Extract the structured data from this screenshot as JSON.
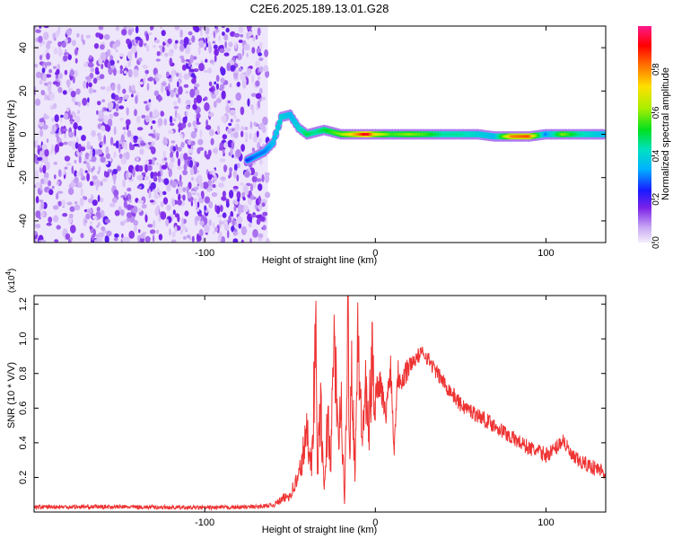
{
  "title": "C2E6.2025.189.13.01.G28",
  "chart_data": [
    {
      "type": "heatmap",
      "title": "C2E6.2025.189.13.01.G28",
      "xlabel": "Height of straight line (km)",
      "ylabel": "Frequency (Hz)",
      "xlim": [
        -200,
        135
      ],
      "ylim": [
        -50,
        50
      ],
      "xticks": [
        -100,
        0,
        100
      ],
      "yticks": [
        -40,
        -20,
        0,
        20,
        40
      ],
      "grid": false,
      "noise_region_x": [
        -200,
        -63
      ],
      "noise_region_note": "",
      "signal_track": [
        {
          "x": -75,
          "freq": -12,
          "amp": 0.25
        },
        {
          "x": -70,
          "freq": -10,
          "amp": 0.3
        },
        {
          "x": -65,
          "freq": -8,
          "amp": 0.3
        },
        {
          "x": -60,
          "freq": -4,
          "amp": 0.35
        },
        {
          "x": -55,
          "freq": 8,
          "amp": 0.4
        },
        {
          "x": -50,
          "freq": 9,
          "amp": 0.35
        },
        {
          "x": -45,
          "freq": 3,
          "amp": 0.4
        },
        {
          "x": -40,
          "freq": 0,
          "amp": 0.5
        },
        {
          "x": -35,
          "freq": 1,
          "amp": 0.45
        },
        {
          "x": -30,
          "freq": 2,
          "amp": 0.5
        },
        {
          "x": -25,
          "freq": 1,
          "amp": 0.55
        },
        {
          "x": -20,
          "freq": 0,
          "amp": 0.6
        },
        {
          "x": -15,
          "freq": 0,
          "amp": 0.7
        },
        {
          "x": -10,
          "freq": 0,
          "amp": 0.8
        },
        {
          "x": -5,
          "freq": 0,
          "amp": 0.95
        },
        {
          "x": 0,
          "freq": 0,
          "amp": 0.7
        },
        {
          "x": 10,
          "freq": 0,
          "amp": 0.55
        },
        {
          "x": 20,
          "freq": 0,
          "amp": 0.6
        },
        {
          "x": 30,
          "freq": 0,
          "amp": 0.55
        },
        {
          "x": 40,
          "freq": 0,
          "amp": 0.45
        },
        {
          "x": 50,
          "freq": 0,
          "amp": 0.45
        },
        {
          "x": 60,
          "freq": 0,
          "amp": 0.4
        },
        {
          "x": 70,
          "freq": -1,
          "amp": 0.35
        },
        {
          "x": 80,
          "freq": -1,
          "amp": 0.8
        },
        {
          "x": 90,
          "freq": -1,
          "amp": 0.85
        },
        {
          "x": 100,
          "freq": 0,
          "amp": 0.3
        },
        {
          "x": 110,
          "freq": 0,
          "amp": 0.6
        },
        {
          "x": 120,
          "freq": 0,
          "amp": 0.45
        },
        {
          "x": 135,
          "freq": 0,
          "amp": 0.35
        }
      ],
      "colorbar": {
        "label": "Normalized spectral amplitude",
        "range": [
          0,
          1
        ],
        "ticks": [
          "0.0",
          "0.2",
          "0.4",
          "0.6",
          "0.8"
        ]
      }
    },
    {
      "type": "line",
      "xlabel": "Height of straight line (km)",
      "ylabel": "SNR (10 * V/V)",
      "scale_label": "(x10",
      "scale_exp": "4",
      "scale_close": ")",
      "xlim": [
        -200,
        135
      ],
      "ylim": [
        0,
        1.25
      ],
      "xticks": [
        -100,
        0,
        100
      ],
      "yticks": [
        "0.2",
        "0.4",
        "0.6",
        "0.8",
        "1.0",
        "1.2"
      ],
      "grid": false,
      "color": "#ee3333",
      "series": [
        {
          "x": [
            -200,
            -150,
            -100,
            -70,
            -60,
            -50,
            -45,
            -40,
            -37,
            -35,
            -34,
            -32,
            -30,
            -28,
            -26,
            -24,
            -22,
            -20,
            -18,
            -16,
            -15,
            -14,
            -12,
            -10,
            -8,
            -6,
            -4,
            -2,
            0,
            3,
            6,
            9,
            11,
            13,
            16,
            20,
            25,
            28,
            30,
            35,
            40,
            50,
            60,
            70,
            80,
            90,
            100,
            105,
            110,
            115,
            120,
            125,
            130,
            135
          ],
          "values": [
            0.03,
            0.03,
            0.025,
            0.03,
            0.04,
            0.1,
            0.2,
            0.45,
            0.3,
            1.07,
            0.25,
            0.6,
            0.1,
            0.55,
            0.3,
            1.05,
            0.4,
            0.6,
            0.03,
            1.25,
            0.3,
            0.9,
            0.25,
            1.05,
            0.4,
            0.7,
            0.45,
            0.85,
            0.7,
            0.75,
            0.55,
            0.85,
            0.35,
            0.8,
            0.78,
            0.85,
            0.9,
            0.92,
            0.9,
            0.82,
            0.75,
            0.62,
            0.56,
            0.5,
            0.43,
            0.37,
            0.33,
            0.36,
            0.42,
            0.32,
            0.29,
            0.27,
            0.25,
            0.23
          ]
        }
      ]
    }
  ]
}
